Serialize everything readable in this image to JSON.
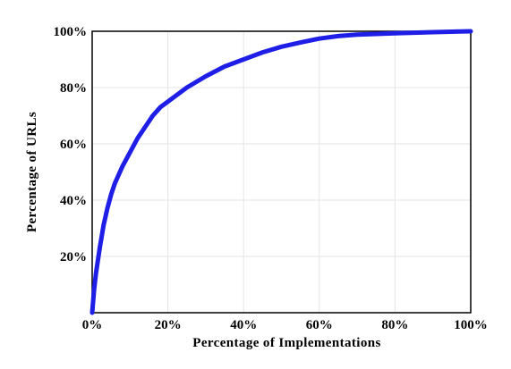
{
  "chart_data": {
    "type": "line",
    "title": "",
    "xlabel": "Percentage  of  Implementations",
    "ylabel": "Percentage  of  URLs",
    "xlim": [
      0,
      100
    ],
    "ylim": [
      0,
      100
    ],
    "grid": true,
    "x_ticks": [
      {
        "value": 0,
        "label": "0%"
      },
      {
        "value": 20,
        "label": "20%"
      },
      {
        "value": 40,
        "label": "40%"
      },
      {
        "value": 60,
        "label": "60%"
      },
      {
        "value": 80,
        "label": "80%"
      },
      {
        "value": 100,
        "label": "100%"
      }
    ],
    "y_ticks": [
      {
        "value": 20,
        "label": "20%"
      },
      {
        "value": 40,
        "label": "40%"
      },
      {
        "value": 60,
        "label": "60%"
      },
      {
        "value": 80,
        "label": "80%"
      },
      {
        "value": 100,
        "label": "100%"
      }
    ],
    "series": [
      {
        "color": "#1e1ee6",
        "x": [
          0,
          0.5,
          1,
          2,
          3,
          4,
          5,
          6,
          8,
          10,
          12,
          14,
          16,
          18,
          20,
          25,
          30,
          35,
          40,
          45,
          50,
          55,
          60,
          65,
          70,
          80,
          90,
          100
        ],
        "y": [
          0,
          8,
          14,
          23,
          31,
          37,
          42,
          46,
          52,
          57,
          62,
          66,
          70,
          73,
          75,
          80,
          84,
          87.5,
          90,
          92.5,
          94.5,
          96,
          97.4,
          98.3,
          98.8,
          99.3,
          99.7,
          100
        ]
      }
    ]
  }
}
